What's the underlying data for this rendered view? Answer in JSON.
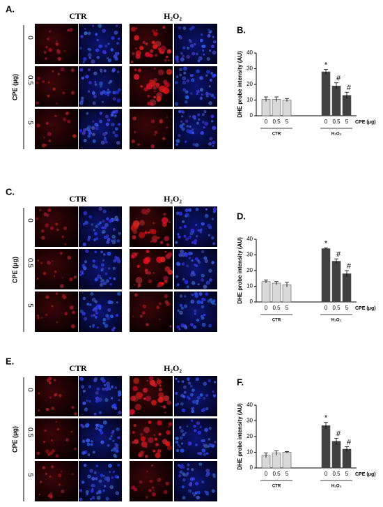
{
  "panels": [
    {
      "label": "A.",
      "columns": [
        "CTR",
        "H₂O₂"
      ],
      "row_axis_label": "CPE (μg)",
      "rows": [
        "0",
        "0.5",
        "5"
      ]
    },
    {
      "label": "C.",
      "columns": [
        "CTR",
        "H₂O₂"
      ],
      "row_axis_label": "CPE (μg)",
      "rows": [
        "0",
        "0.5",
        "5"
      ]
    },
    {
      "label": "E.",
      "columns": [
        "CTR",
        "H₂O₂"
      ],
      "row_axis_label": "CPE (μg)",
      "rows": [
        "0",
        "0.5",
        "5"
      ]
    }
  ],
  "chart_data": [
    {
      "type": "bar",
      "label": "B.",
      "ylabel": "DHE probe intensity (AU)",
      "xlabel": "CPE (μg)",
      "categories": [
        "0",
        "0.5",
        "5"
      ],
      "ylim": [
        0,
        40
      ],
      "yticks": [
        0,
        10,
        20,
        30,
        40
      ],
      "series": [
        {
          "name": "CTR",
          "color": "#d9d9d9",
          "values": [
            10.5,
            10.5,
            10
          ],
          "errors": [
            1.5,
            1.5,
            1
          ],
          "significance": [
            null,
            null,
            null
          ]
        },
        {
          "name": "H₂O₂",
          "color": "#404040",
          "values": [
            28,
            19,
            13
          ],
          "errors": [
            1.5,
            2,
            2
          ],
          "significance": [
            "*",
            "#",
            "#"
          ]
        }
      ]
    },
    {
      "type": "bar",
      "label": "D.",
      "ylabel": "DHE probe intensity (AU)",
      "xlabel": "CPE (μg)",
      "categories": [
        "0",
        "0.5",
        "5"
      ],
      "ylim": [
        0,
        40
      ],
      "yticks": [
        0,
        10,
        20,
        30,
        40
      ],
      "series": [
        {
          "name": "CTR",
          "color": "#d9d9d9",
          "values": [
            13,
            12,
            11
          ],
          "errors": [
            1,
            1,
            1.5
          ],
          "significance": [
            null,
            null,
            null
          ]
        },
        {
          "name": "H₂O₂",
          "color": "#404040",
          "values": [
            34,
            26,
            18
          ],
          "errors": [
            0.5,
            1.5,
            2
          ],
          "significance": [
            "*",
            "#",
            "#"
          ]
        }
      ]
    },
    {
      "type": "bar",
      "label": "F.",
      "ylabel": "DHE probe intensity (AU)",
      "xlabel": "CPE (μg)",
      "categories": [
        "0",
        "0.5",
        "5"
      ],
      "ylim": [
        0,
        40
      ],
      "yticks": [
        0,
        10,
        20,
        30,
        40
      ],
      "series": [
        {
          "name": "CTR",
          "color": "#d9d9d9",
          "values": [
            8,
            9.5,
            10
          ],
          "errors": [
            1.5,
            1.5,
            0.5
          ],
          "significance": [
            null,
            null,
            null
          ]
        },
        {
          "name": "H₂O₂",
          "color": "#404040",
          "values": [
            27,
            17,
            12
          ],
          "errors": [
            2,
            2,
            1.5
          ],
          "significance": [
            "*",
            "#",
            "#"
          ]
        }
      ]
    }
  ]
}
